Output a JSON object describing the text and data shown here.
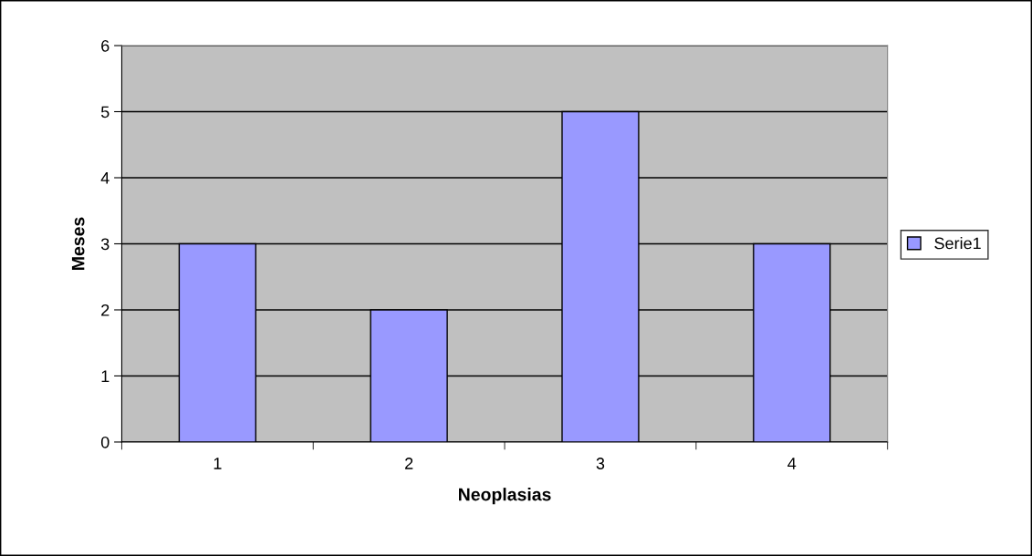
{
  "chart_data": {
    "type": "bar",
    "xlabel": "Neoplasias",
    "ylabel": "Meses",
    "categories": [
      "1",
      "2",
      "3",
      "4"
    ],
    "series": [
      {
        "name": "Serie1",
        "color": "#9999ff",
        "values": [
          3,
          2,
          5,
          3
        ]
      }
    ],
    "ylim": [
      0,
      6
    ],
    "yticks": [
      0,
      1,
      2,
      3,
      4,
      5,
      6
    ],
    "grid": "y",
    "legend": "right"
  }
}
